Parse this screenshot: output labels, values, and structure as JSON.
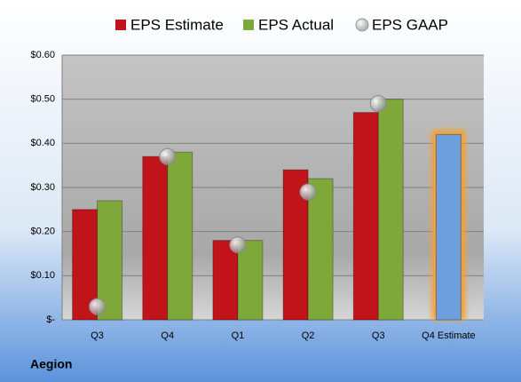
{
  "chart_data": {
    "type": "bar",
    "footer": "Aegion",
    "categories": [
      "Q3",
      "Q4",
      "Q1",
      "Q2",
      "Q3",
      "Q4 Estimate"
    ],
    "series": [
      {
        "name": "EPS Estimate",
        "color": "#c0141a",
        "highlight_color": "#6d9fdc",
        "values": [
          0.25,
          0.37,
          0.18,
          0.34,
          0.47,
          0.42
        ]
      },
      {
        "name": "EPS Actual",
        "color": "#7fa83a",
        "values": [
          0.27,
          0.38,
          0.18,
          0.32,
          0.5,
          null
        ]
      },
      {
        "name": "EPS GAAP",
        "color": "#b8bcc2",
        "marker": "circle",
        "values": [
          0.03,
          0.37,
          0.17,
          0.29,
          0.49,
          null
        ]
      }
    ],
    "ylim": [
      0,
      0.6
    ],
    "yticks": [
      {
        "value": 0,
        "label": "$-"
      },
      {
        "value": 0.1,
        "label": "$0.10"
      },
      {
        "value": 0.2,
        "label": "$0.20"
      },
      {
        "value": 0.3,
        "label": "$0.30"
      },
      {
        "value": 0.4,
        "label": "$0.40"
      },
      {
        "value": 0.5,
        "label": "$0.50"
      },
      {
        "value": 0.6,
        "label": "$0.60"
      }
    ],
    "grid": true
  }
}
